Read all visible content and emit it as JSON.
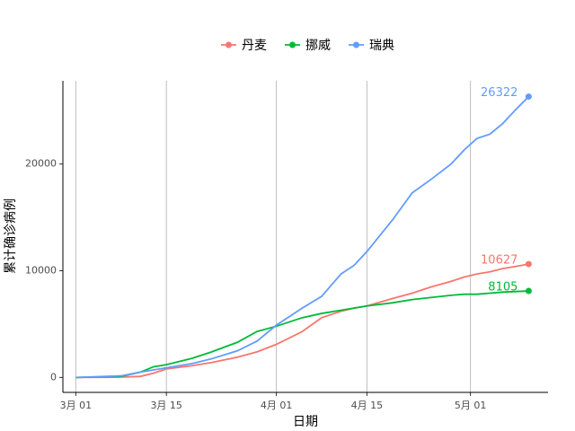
{
  "chart_data": {
    "type": "line",
    "x_label": "日期",
    "y_label": "累计确诊病例",
    "x": [
      "03-01",
      "03-08",
      "03-11",
      "03-13",
      "03-15",
      "03-19",
      "03-22",
      "03-26",
      "03-29",
      "04-01",
      "04-05",
      "04-08",
      "04-11",
      "04-13",
      "04-15",
      "04-19",
      "04-22",
      "04-25",
      "04-28",
      "04-30",
      "05-02",
      "05-04",
      "05-06",
      "05-08",
      "05-10"
    ],
    "series": [
      {
        "name": "丹麦",
        "color": "#F8766D",
        "values": [
          0,
          30,
          100,
          400,
          800,
          1100,
          1400,
          1900,
          2400,
          3100,
          4300,
          5600,
          6200,
          6500,
          6700,
          7400,
          7900,
          8500,
          9000,
          9400,
          9700,
          9900,
          10200,
          10400,
          10627
        ]
      },
      {
        "name": "挪威",
        "color": "#00BA38",
        "values": [
          0,
          100,
          500,
          1000,
          1200,
          1800,
          2400,
          3300,
          4300,
          4800,
          5600,
          6000,
          6300,
          6500,
          6700,
          7000,
          7300,
          7500,
          7700,
          7800,
          7800,
          7900,
          8000,
          8050,
          8105
        ]
      },
      {
        "name": "瑞典",
        "color": "#619CFF",
        "values": [
          0,
          150,
          500,
          700,
          900,
          1300,
          1750,
          2500,
          3400,
          4900,
          6500,
          7600,
          9700,
          10500,
          11800,
          14800,
          17300,
          18600,
          20000,
          21300,
          22400,
          22800,
          23800,
          25100,
          26322
        ]
      }
    ],
    "xlim": [
      "02-27",
      "05-13"
    ],
    "xticks": [
      {
        "value": "03-01",
        "label": "3月 01"
      },
      {
        "value": "03-15",
        "label": "3月 15"
      },
      {
        "value": "04-01",
        "label": "4月 01"
      },
      {
        "value": "04-15",
        "label": "4月 15"
      },
      {
        "value": "05-01",
        "label": "5月 01"
      }
    ],
    "ylim": [
      -1400,
      27800
    ],
    "yticks": [
      0,
      10000,
      20000
    ],
    "grid": "x",
    "legend": "top"
  }
}
